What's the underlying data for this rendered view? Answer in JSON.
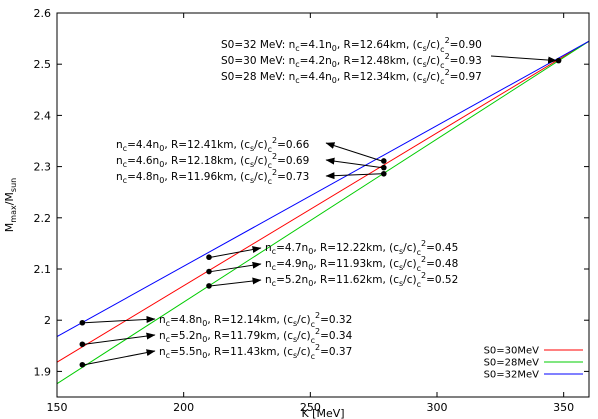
{
  "chart_data": {
    "type": "line",
    "xlabel": "K [MeV]",
    "ylabel_main": "M",
    "ylabel_sub1": "max",
    "ylabel_mid": "/M",
    "ylabel_sub2": "sun",
    "xlim": [
      150,
      360
    ],
    "ylim": [
      1.85,
      2.6
    ],
    "xticks": [
      150,
      200,
      250,
      300,
      350
    ],
    "yticks": [
      1.9,
      2.0,
      2.1,
      2.2,
      2.3,
      2.4,
      2.5,
      2.6
    ],
    "ytick_labels": [
      "1.9",
      "2",
      "2.1",
      "2.2",
      "2.3",
      "2.4",
      "2.5",
      "2.6"
    ],
    "legend_position": "bottom-right",
    "series": [
      {
        "name": "S0=30MeV",
        "color": "#ff0000",
        "x": [
          150,
          360
        ],
        "y": [
          1.918,
          2.545
        ]
      },
      {
        "name": "S0=28MeV",
        "color": "#00cc00",
        "x": [
          150,
          360
        ],
        "y": [
          1.876,
          2.545
        ]
      },
      {
        "name": "S0=32MeV",
        "color": "#0000ff",
        "x": [
          150,
          360
        ],
        "y": [
          1.968,
          2.545
        ]
      }
    ],
    "points": [
      {
        "x": 160,
        "y": 1.995
      },
      {
        "x": 160,
        "y": 1.953
      },
      {
        "x": 160,
        "y": 1.913
      },
      {
        "x": 210,
        "y": 2.123
      },
      {
        "x": 210,
        "y": 2.095
      },
      {
        "x": 210,
        "y": 2.067
      },
      {
        "x": 279,
        "y": 2.311
      },
      {
        "x": 279,
        "y": 2.298
      },
      {
        "x": 279,
        "y": 2.286
      },
      {
        "x": 348,
        "y": 2.507
      }
    ],
    "annotations": [
      {
        "nc": "4.1",
        "R": "12.64km",
        "cs": "0.90",
        "prefix": "S0=32 MeV: "
      },
      {
        "nc": "4.2",
        "R": "12.48km",
        "cs": "0.93",
        "prefix": "S0=30 MeV: "
      },
      {
        "nc": "4.4",
        "R": "12.34km",
        "cs": "0.97",
        "prefix": "S0=28 MeV: "
      },
      {
        "nc": "4.4",
        "R": "12.41km",
        "cs": "0.66",
        "prefix": ""
      },
      {
        "nc": "4.6",
        "R": "12.18km",
        "cs": "0.69",
        "prefix": ""
      },
      {
        "nc": "4.8",
        "R": "11.96km",
        "cs": "0.73",
        "prefix": ""
      },
      {
        "nc": "4.7",
        "R": "12.22km",
        "cs": "0.45",
        "prefix": ""
      },
      {
        "nc": "4.9",
        "R": "11.93km",
        "cs": "0.48",
        "prefix": ""
      },
      {
        "nc": "5.2",
        "R": "11.62km",
        "cs": "0.52",
        "prefix": ""
      },
      {
        "nc": "4.8",
        "R": "12.14km",
        "cs": "0.32",
        "prefix": ""
      },
      {
        "nc": "5.2",
        "R": "11.79km",
        "cs": "0.34",
        "prefix": ""
      },
      {
        "nc": "5.5",
        "R": "11.43km",
        "cs": "0.37",
        "prefix": ""
      }
    ]
  }
}
